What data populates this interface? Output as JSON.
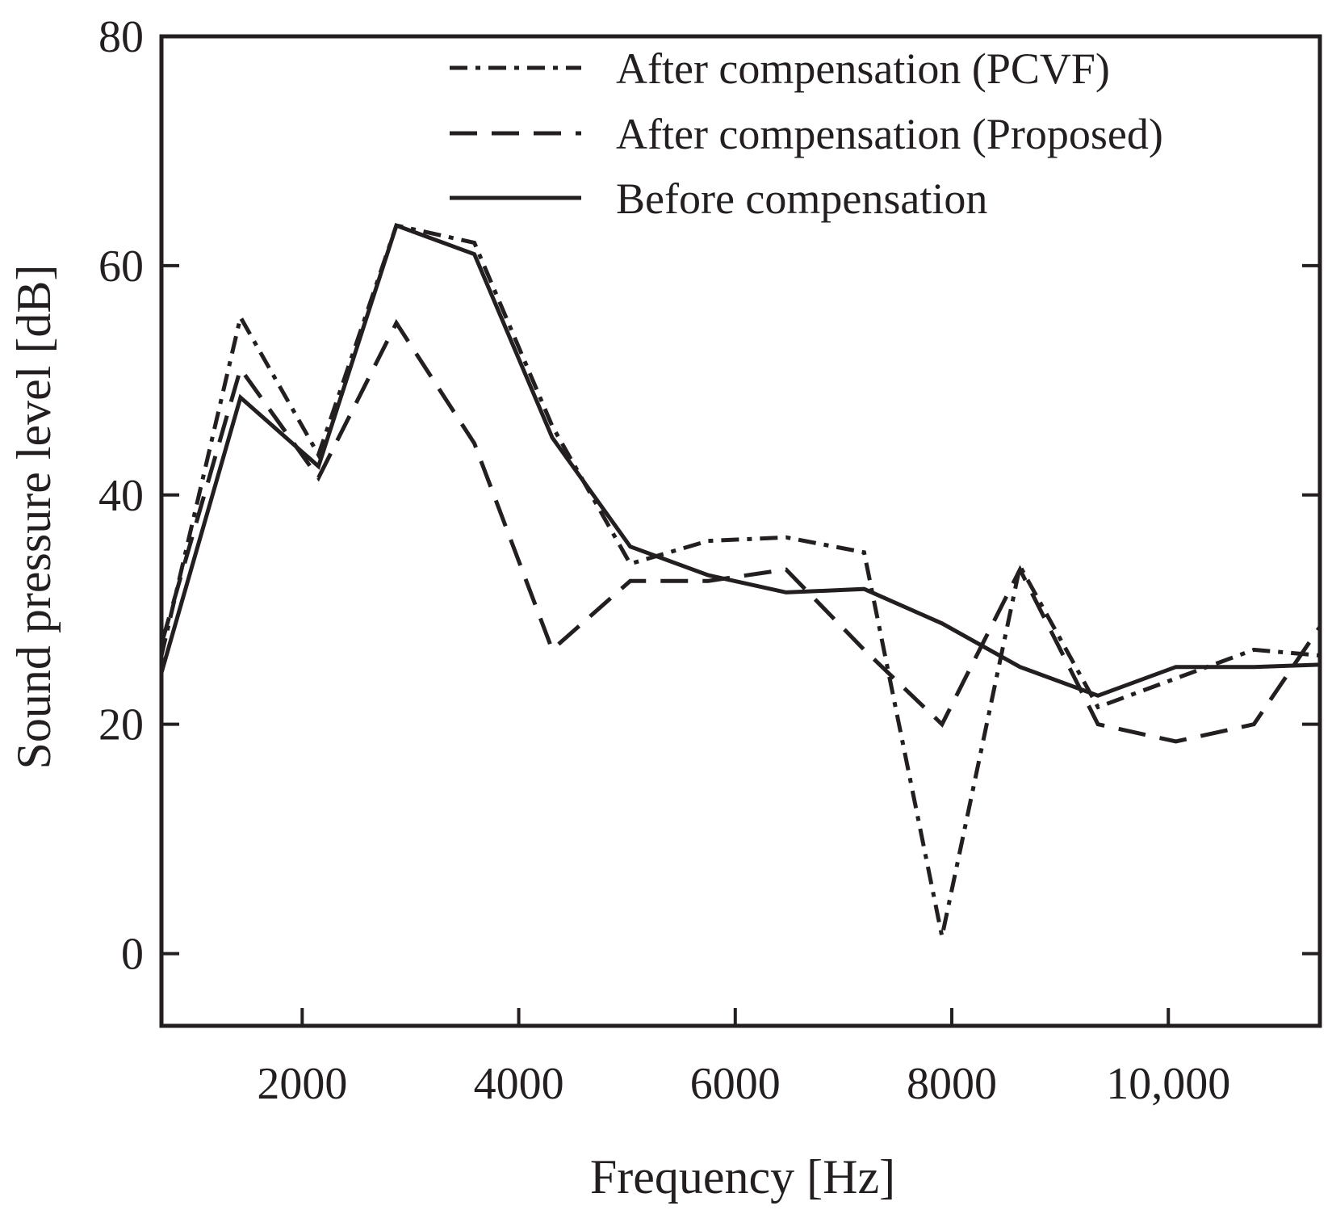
{
  "chart_data": {
    "type": "line",
    "title": "",
    "xlabel": "Frequency [Hz]",
    "ylabel": "Sound pressure level [dB]",
    "xlim": [
      700,
      11400
    ],
    "ylim": [
      -6.3,
      80
    ],
    "xticks": [
      2000,
      4000,
      6000,
      8000,
      10000
    ],
    "xtick_labels": [
      "2000",
      "4000",
      "6000",
      "8000",
      "10,000"
    ],
    "yticks": [
      0,
      20,
      40,
      60,
      80
    ],
    "ytick_labels": [
      "0",
      "20",
      "40",
      "60",
      "80"
    ],
    "legend_position": "top-right",
    "series": [
      {
        "name": "After compensation (PCVF)",
        "style": "dashdot",
        "color": "#231f20",
        "x": [
          700,
          1430,
          2150,
          2870,
          3590,
          4310,
          5030,
          5750,
          6470,
          7190,
          7910,
          8630,
          9350,
          10070,
          10790,
          11400
        ],
        "y": [
          26,
          55.5,
          43.5,
          63.5,
          62,
          46,
          34,
          36,
          36.3,
          35,
          1.5,
          33.8,
          21.5,
          24,
          26.5,
          26
        ]
      },
      {
        "name": "After compensation (Proposed)",
        "style": "dashed",
        "color": "#231f20",
        "x": [
          700,
          1430,
          2150,
          2870,
          3590,
          4310,
          5030,
          5750,
          6470,
          7190,
          7910,
          8630,
          9350,
          10070,
          10790,
          11400
        ],
        "y": [
          27,
          51,
          41.5,
          55,
          44.5,
          26.5,
          32.5,
          32.5,
          33.5,
          26.5,
          20,
          33.5,
          20,
          18.5,
          20,
          28.5
        ]
      },
      {
        "name": "Before compensation",
        "style": "solid",
        "color": "#231f20",
        "x": [
          700,
          1430,
          2150,
          2870,
          3590,
          4310,
          5030,
          5750,
          6470,
          7190,
          7910,
          8630,
          9350,
          10070,
          10790,
          11400
        ],
        "y": [
          24.5,
          48.5,
          42.5,
          63.5,
          61,
          45,
          35.5,
          33,
          31.5,
          31.8,
          28.8,
          25,
          22.5,
          25,
          25,
          25.2
        ]
      }
    ]
  }
}
